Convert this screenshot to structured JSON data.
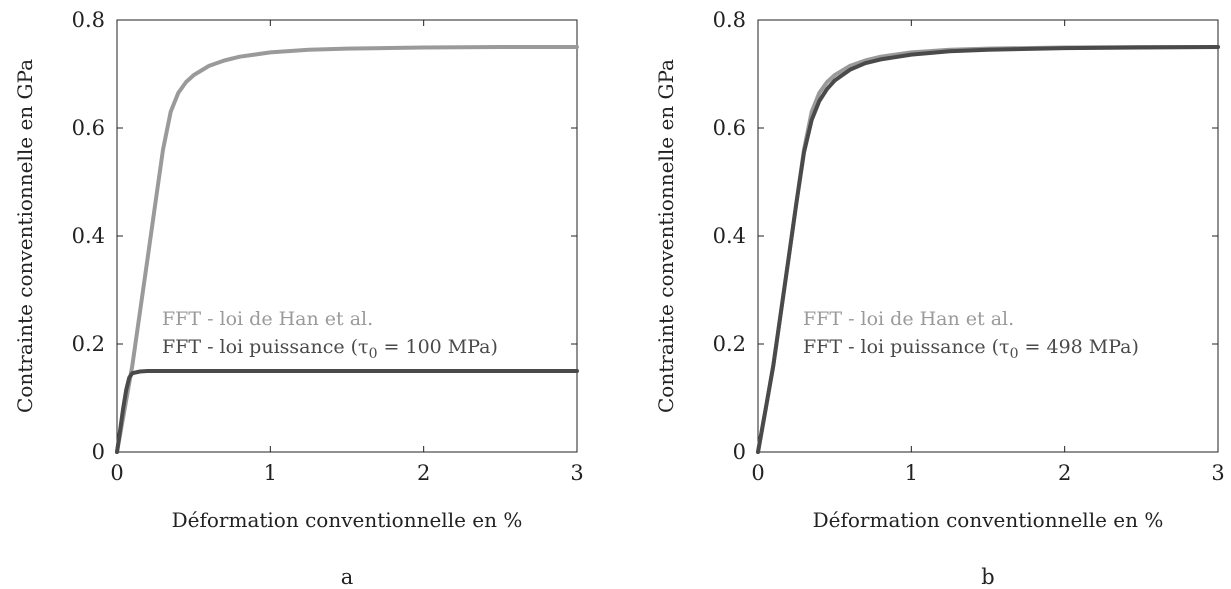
{
  "chart_data": [
    {
      "type": "line",
      "caption": "a",
      "xlabel": "Déformation conventionnelle en %",
      "ylabel": "Contrainte conventionnelle en GPa",
      "xlim": [
        0,
        3
      ],
      "ylim": [
        0,
        0.8
      ],
      "xticks": [
        "0",
        "1",
        "2",
        "3"
      ],
      "yticks": [
        "0",
        "0.2",
        "0.4",
        "0.6",
        "0.8"
      ],
      "grid": false,
      "legend_position": "center-left",
      "series": [
        {
          "name": "FFT - loi de Han et al.",
          "color": "#9a9a9a",
          "x": [
            0,
            0.05,
            0.1,
            0.15,
            0.2,
            0.25,
            0.3,
            0.35,
            0.4,
            0.45,
            0.5,
            0.6,
            0.7,
            0.8,
            1.0,
            1.25,
            1.5,
            2.0,
            2.5,
            3.0
          ],
          "y": [
            0,
            0.08,
            0.16,
            0.26,
            0.36,
            0.46,
            0.56,
            0.63,
            0.665,
            0.685,
            0.698,
            0.715,
            0.725,
            0.732,
            0.74,
            0.745,
            0.747,
            0.749,
            0.75,
            0.75
          ]
        },
        {
          "name": "FFT - loi puissance (τ0 = 100 MPa)",
          "color": "#4a4a4a",
          "x": [
            0,
            0.02,
            0.04,
            0.06,
            0.08,
            0.1,
            0.15,
            0.2,
            0.3,
            0.5,
            1.0,
            2.0,
            3.0
          ],
          "y": [
            0,
            0.04,
            0.08,
            0.115,
            0.138,
            0.146,
            0.149,
            0.15,
            0.15,
            0.15,
            0.15,
            0.15,
            0.15
          ]
        }
      ]
    },
    {
      "type": "line",
      "caption": "b",
      "xlabel": "Déformation conventionnelle en %",
      "ylabel": "Contrainte conventionnelle en GPa",
      "xlim": [
        0,
        3
      ],
      "ylim": [
        0,
        0.8
      ],
      "xticks": [
        "0",
        "1",
        "2",
        "3"
      ],
      "yticks": [
        "0",
        "0.2",
        "0.4",
        "0.6",
        "0.8"
      ],
      "grid": false,
      "legend_position": "center-left",
      "series": [
        {
          "name": "FFT - loi de Han et al.",
          "color": "#9a9a9a",
          "x": [
            0,
            0.05,
            0.1,
            0.15,
            0.2,
            0.25,
            0.3,
            0.35,
            0.4,
            0.45,
            0.5,
            0.6,
            0.7,
            0.8,
            1.0,
            1.25,
            1.5,
            2.0,
            2.5,
            3.0
          ],
          "y": [
            0,
            0.08,
            0.16,
            0.26,
            0.36,
            0.46,
            0.56,
            0.63,
            0.665,
            0.685,
            0.698,
            0.715,
            0.725,
            0.732,
            0.74,
            0.745,
            0.747,
            0.749,
            0.75,
            0.75
          ]
        },
        {
          "name": "FFT - loi puissance (τ0 = 498 MPa)",
          "color": "#4a4a4a",
          "x": [
            0,
            0.05,
            0.1,
            0.15,
            0.2,
            0.25,
            0.3,
            0.35,
            0.4,
            0.45,
            0.5,
            0.6,
            0.7,
            0.8,
            1.0,
            1.25,
            1.5,
            2.0,
            2.5,
            3.0
          ],
          "y": [
            0,
            0.08,
            0.16,
            0.26,
            0.36,
            0.46,
            0.555,
            0.615,
            0.65,
            0.672,
            0.688,
            0.708,
            0.72,
            0.727,
            0.736,
            0.742,
            0.745,
            0.748,
            0.749,
            0.75
          ]
        }
      ]
    }
  ]
}
